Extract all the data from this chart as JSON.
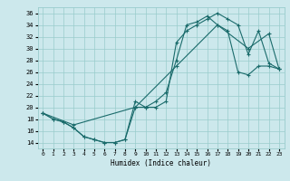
{
  "title": "",
  "xlabel": "Humidex (Indice chaleur)",
  "bg_color": "#cce8ec",
  "grid_color": "#99cccc",
  "line_color": "#1a6b6b",
  "xlim": [
    -0.5,
    23.5
  ],
  "ylim": [
    13,
    37
  ],
  "yticks": [
    14,
    16,
    18,
    20,
    22,
    24,
    26,
    28,
    30,
    32,
    34,
    36
  ],
  "xticks": [
    0,
    1,
    2,
    3,
    4,
    5,
    6,
    7,
    8,
    9,
    10,
    11,
    12,
    13,
    14,
    15,
    16,
    17,
    18,
    19,
    20,
    21,
    22,
    23
  ],
  "line1_x": [
    0,
    1,
    2,
    3,
    4,
    5,
    6,
    7,
    8,
    9,
    10,
    11,
    12,
    13,
    14,
    15,
    16,
    17,
    18,
    19,
    20,
    21,
    22,
    23
  ],
  "line1_y": [
    19,
    18,
    17.5,
    16.5,
    15,
    14.5,
    14,
    14,
    14.5,
    21,
    20,
    20,
    21,
    31,
    33,
    34,
    35,
    36,
    35,
    34,
    29,
    33,
    27.5,
    26.5
  ],
  "line2_x": [
    0,
    1,
    2,
    3,
    4,
    5,
    6,
    7,
    8,
    9,
    10,
    11,
    12,
    13,
    14,
    15,
    16,
    17,
    18,
    19,
    20,
    21,
    22,
    23
  ],
  "line2_y": [
    19,
    18,
    17.5,
    16.5,
    15,
    14.5,
    14,
    14,
    14.5,
    20,
    20,
    21,
    22.5,
    28,
    34,
    34.5,
    35.5,
    34,
    33,
    26,
    25.5,
    27,
    27,
    26.5
  ],
  "line3_x": [
    0,
    3,
    9,
    13,
    17,
    20,
    22,
    23
  ],
  "line3_y": [
    19,
    17,
    20,
    27,
    34,
    30,
    32.5,
    26.5
  ]
}
